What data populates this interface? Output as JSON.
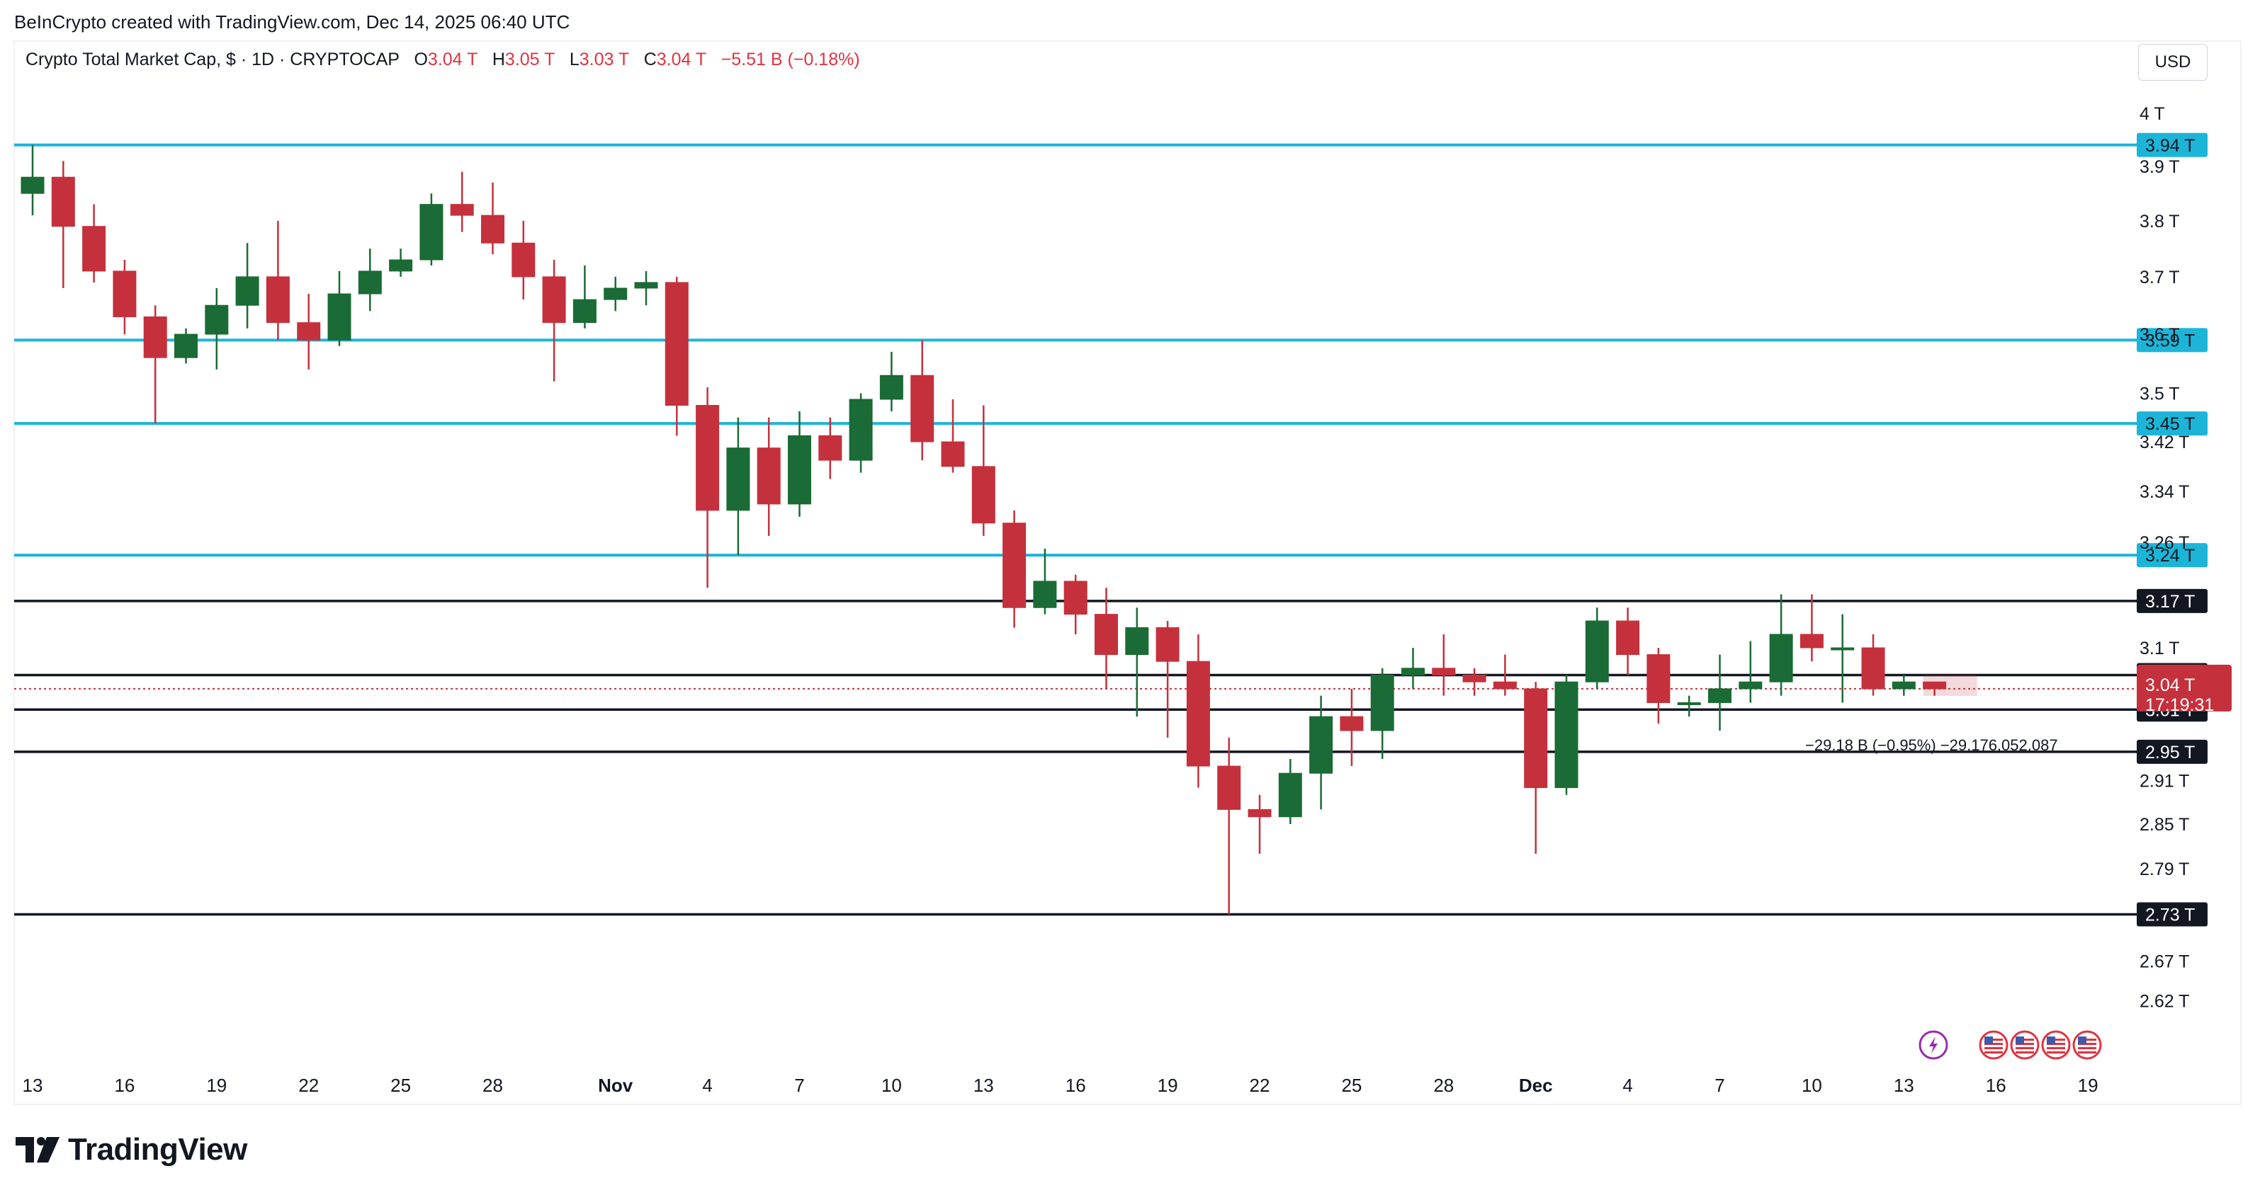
{
  "attribution": "BeInCrypto created with TradingView.com, Dec 14, 2025 06:40 UTC",
  "symbol": {
    "name": "Crypto Total Market Cap, $ · 1D · CRYPTOCAP",
    "o_label": "O",
    "o_value": "3.04 T",
    "h_label": "H",
    "h_value": "3.05 T",
    "l_label": "L",
    "l_value": "3.03 T",
    "c_label": "C",
    "c_value": "3.04 T",
    "change": "−5.51 B (−0.18%)"
  },
  "currency_button": "USD",
  "brand": "TradingView",
  "colors": {
    "up": "#1a6b35",
    "down": "#c4313c",
    "cyan_level": "#1cb5d8",
    "black_level": "#131722",
    "price_badge": "#c4313c",
    "event_icon": "#9c27b0"
  },
  "chart_data": {
    "type": "candlestick",
    "title": "Crypto Total Market Cap, $ · 1D · CRYPTOCAP",
    "ylabel": "USD",
    "ylim": [
      2.595,
      4.04
    ],
    "y_scale": "log",
    "y_ticks": [
      "4 T",
      "3.9 T",
      "3.8 T",
      "3.7 T",
      "3.6 T",
      "3.5 T",
      "3.42 T",
      "3.34 T",
      "3.26 T",
      "3.1 T",
      "2.91 T",
      "2.85 T",
      "2.79 T",
      "2.67 T",
      "2.62 T"
    ],
    "y_tick_values": [
      4.0,
      3.9,
      3.8,
      3.7,
      3.6,
      3.5,
      3.42,
      3.34,
      3.26,
      3.1,
      2.91,
      2.85,
      2.79,
      2.67,
      2.62
    ],
    "x_ticks": [
      "13",
      "16",
      "19",
      "22",
      "25",
      "28",
      "Nov",
      "4",
      "7",
      "10",
      "13",
      "16",
      "19",
      "22",
      "25",
      "28",
      "Dec",
      "4",
      "7",
      "10",
      "13",
      "16",
      "19"
    ],
    "x_tick_index": [
      0,
      3,
      6,
      9,
      12,
      15,
      19,
      22,
      25,
      28,
      31,
      34,
      37,
      40,
      43,
      46,
      49,
      52,
      55,
      58,
      61,
      64,
      67
    ],
    "candles": [
      {
        "date": "Oct 13",
        "o": 3.85,
        "h": 3.94,
        "l": 3.81,
        "c": 3.88
      },
      {
        "date": "Oct 14",
        "o": 3.88,
        "h": 3.91,
        "l": 3.68,
        "c": 3.79
      },
      {
        "date": "Oct 15",
        "o": 3.79,
        "h": 3.83,
        "l": 3.69,
        "c": 3.71
      },
      {
        "date": "Oct 16",
        "o": 3.71,
        "h": 3.73,
        "l": 3.6,
        "c": 3.63
      },
      {
        "date": "Oct 17",
        "o": 3.63,
        "h": 3.65,
        "l": 3.45,
        "c": 3.56
      },
      {
        "date": "Oct 18",
        "o": 3.56,
        "h": 3.61,
        "l": 3.55,
        "c": 3.6
      },
      {
        "date": "Oct 19",
        "o": 3.6,
        "h": 3.68,
        "l": 3.54,
        "c": 3.65
      },
      {
        "date": "Oct 20",
        "o": 3.65,
        "h": 3.76,
        "l": 3.61,
        "c": 3.7
      },
      {
        "date": "Oct 21",
        "o": 3.7,
        "h": 3.8,
        "l": 3.59,
        "c": 3.62
      },
      {
        "date": "Oct 22",
        "o": 3.62,
        "h": 3.67,
        "l": 3.54,
        "c": 3.59
      },
      {
        "date": "Oct 23",
        "o": 3.59,
        "h": 3.71,
        "l": 3.58,
        "c": 3.67
      },
      {
        "date": "Oct 24",
        "o": 3.67,
        "h": 3.75,
        "l": 3.64,
        "c": 3.71
      },
      {
        "date": "Oct 25",
        "o": 3.71,
        "h": 3.75,
        "l": 3.7,
        "c": 3.73
      },
      {
        "date": "Oct 26",
        "o": 3.73,
        "h": 3.85,
        "l": 3.72,
        "c": 3.83
      },
      {
        "date": "Oct 27",
        "o": 3.83,
        "h": 3.89,
        "l": 3.78,
        "c": 3.81
      },
      {
        "date": "Oct 28",
        "o": 3.81,
        "h": 3.87,
        "l": 3.74,
        "c": 3.76
      },
      {
        "date": "Oct 29",
        "o": 3.76,
        "h": 3.8,
        "l": 3.66,
        "c": 3.7
      },
      {
        "date": "Oct 30",
        "o": 3.7,
        "h": 3.73,
        "l": 3.52,
        "c": 3.62
      },
      {
        "date": "Oct 31",
        "o": 3.62,
        "h": 3.72,
        "l": 3.61,
        "c": 3.66
      },
      {
        "date": "Nov 1",
        "o": 3.66,
        "h": 3.7,
        "l": 3.64,
        "c": 3.68
      },
      {
        "date": "Nov 2",
        "o": 3.68,
        "h": 3.71,
        "l": 3.65,
        "c": 3.69
      },
      {
        "date": "Nov 3",
        "o": 3.69,
        "h": 3.7,
        "l": 3.43,
        "c": 3.48
      },
      {
        "date": "Nov 4",
        "o": 3.48,
        "h": 3.51,
        "l": 3.19,
        "c": 3.31
      },
      {
        "date": "Nov 5",
        "o": 3.31,
        "h": 3.46,
        "l": 3.24,
        "c": 3.41
      },
      {
        "date": "Nov 6",
        "o": 3.41,
        "h": 3.46,
        "l": 3.27,
        "c": 3.32
      },
      {
        "date": "Nov 7",
        "o": 3.32,
        "h": 3.47,
        "l": 3.3,
        "c": 3.43
      },
      {
        "date": "Nov 8",
        "o": 3.43,
        "h": 3.46,
        "l": 3.36,
        "c": 3.39
      },
      {
        "date": "Nov 9",
        "o": 3.39,
        "h": 3.5,
        "l": 3.37,
        "c": 3.49
      },
      {
        "date": "Nov 10",
        "o": 3.49,
        "h": 3.57,
        "l": 3.47,
        "c": 3.53
      },
      {
        "date": "Nov 11",
        "o": 3.53,
        "h": 3.59,
        "l": 3.39,
        "c": 3.42
      },
      {
        "date": "Nov 12",
        "o": 3.42,
        "h": 3.49,
        "l": 3.37,
        "c": 3.38
      },
      {
        "date": "Nov 13",
        "o": 3.38,
        "h": 3.48,
        "l": 3.27,
        "c": 3.29
      },
      {
        "date": "Nov 14",
        "o": 3.29,
        "h": 3.31,
        "l": 3.13,
        "c": 3.16
      },
      {
        "date": "Nov 15",
        "o": 3.16,
        "h": 3.25,
        "l": 3.15,
        "c": 3.2
      },
      {
        "date": "Nov 16",
        "o": 3.2,
        "h": 3.21,
        "l": 3.12,
        "c": 3.15
      },
      {
        "date": "Nov 17",
        "o": 3.15,
        "h": 3.19,
        "l": 3.04,
        "c": 3.09
      },
      {
        "date": "Nov 18",
        "o": 3.09,
        "h": 3.16,
        "l": 3.0,
        "c": 3.13
      },
      {
        "date": "Nov 19",
        "o": 3.13,
        "h": 3.14,
        "l": 2.97,
        "c": 3.08
      },
      {
        "date": "Nov 20",
        "o": 3.08,
        "h": 3.12,
        "l": 2.9,
        "c": 2.93
      },
      {
        "date": "Nov 21",
        "o": 2.93,
        "h": 2.97,
        "l": 2.73,
        "c": 2.87
      },
      {
        "date": "Nov 22",
        "o": 2.87,
        "h": 2.89,
        "l": 2.81,
        "c": 2.86
      },
      {
        "date": "Nov 23",
        "o": 2.86,
        "h": 2.94,
        "l": 2.85,
        "c": 2.92
      },
      {
        "date": "Nov 24",
        "o": 2.92,
        "h": 3.03,
        "l": 2.87,
        "c": 3.0
      },
      {
        "date": "Nov 25",
        "o": 3.0,
        "h": 3.04,
        "l": 2.93,
        "c": 2.98
      },
      {
        "date": "Nov 26",
        "o": 2.98,
        "h": 3.07,
        "l": 2.94,
        "c": 3.06
      },
      {
        "date": "Nov 27",
        "o": 3.06,
        "h": 3.1,
        "l": 3.04,
        "c": 3.07
      },
      {
        "date": "Nov 28",
        "o": 3.07,
        "h": 3.12,
        "l": 3.03,
        "c": 3.06
      },
      {
        "date": "Nov 29",
        "o": 3.06,
        "h": 3.07,
        "l": 3.03,
        "c": 3.05
      },
      {
        "date": "Nov 30",
        "o": 3.05,
        "h": 3.09,
        "l": 3.03,
        "c": 3.04
      },
      {
        "date": "Dec 1",
        "o": 3.04,
        "h": 3.05,
        "l": 2.81,
        "c": 2.9
      },
      {
        "date": "Dec 2",
        "o": 2.9,
        "h": 3.06,
        "l": 2.89,
        "c": 3.05
      },
      {
        "date": "Dec 3",
        "o": 3.05,
        "h": 3.16,
        "l": 3.04,
        "c": 3.14
      },
      {
        "date": "Dec 4",
        "o": 3.14,
        "h": 3.16,
        "l": 3.06,
        "c": 3.09
      },
      {
        "date": "Dec 5",
        "o": 3.09,
        "h": 3.1,
        "l": 2.99,
        "c": 3.02
      },
      {
        "date": "Dec 6",
        "o": 3.02,
        "h": 3.03,
        "l": 3.0,
        "c": 3.02
      },
      {
        "date": "Dec 7",
        "o": 3.02,
        "h": 3.09,
        "l": 2.98,
        "c": 3.04
      },
      {
        "date": "Dec 8",
        "o": 3.04,
        "h": 3.11,
        "l": 3.02,
        "c": 3.05
      },
      {
        "date": "Dec 9",
        "o": 3.05,
        "h": 3.18,
        "l": 3.03,
        "c": 3.12
      },
      {
        "date": "Dec 10",
        "o": 3.12,
        "h": 3.18,
        "l": 3.08,
        "c": 3.1
      },
      {
        "date": "Dec 11",
        "o": 3.1,
        "h": 3.15,
        "l": 3.02,
        "c": 3.1
      },
      {
        "date": "Dec 12",
        "o": 3.1,
        "h": 3.12,
        "l": 3.03,
        "c": 3.04
      },
      {
        "date": "Dec 13",
        "o": 3.04,
        "h": 3.06,
        "l": 3.03,
        "c": 3.05
      },
      {
        "date": "Dec 14",
        "o": 3.05,
        "h": 3.05,
        "l": 3.03,
        "c": 3.04
      }
    ],
    "horizontal_levels": [
      {
        "value": 3.94,
        "label": "3.94 T",
        "color": "cyan"
      },
      {
        "value": 3.59,
        "label": "3.59 T",
        "color": "cyan"
      },
      {
        "value": 3.45,
        "label": "3.45 T",
        "color": "cyan"
      },
      {
        "value": 3.24,
        "label": "3.24 T",
        "color": "cyan"
      },
      {
        "value": 3.17,
        "label": "3.17 T",
        "color": "black"
      },
      {
        "value": 3.06,
        "label": "3.06 T",
        "color": "black"
      },
      {
        "value": 3.01,
        "label": "3.01 T",
        "color": "black"
      },
      {
        "value": 2.95,
        "label": "2.95 T",
        "color": "black"
      },
      {
        "value": 2.73,
        "label": "2.73 T",
        "color": "black"
      }
    ],
    "last_price": {
      "value": 3.04,
      "label": "3.04 T",
      "countdown": "17:19:31"
    },
    "measure_annotation": "−29.18 B (−0.95%) −29,176,052,087",
    "grid": false,
    "event_icons": 5
  }
}
